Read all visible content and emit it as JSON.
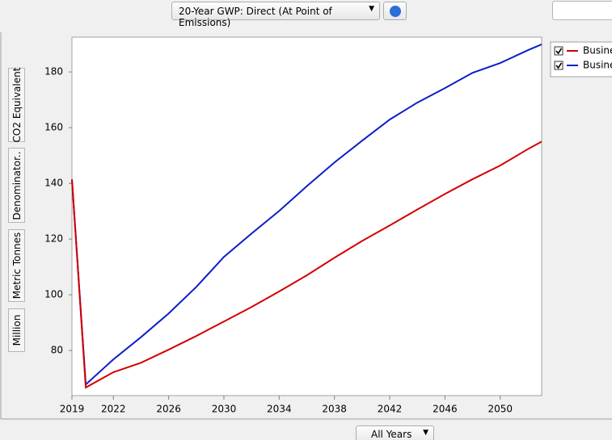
{
  "toolbar": {
    "gwp_select": "20-Year GWP: Direct (At Point of Emissions)"
  },
  "side_tabs": [
    "CO2 Equivalent",
    "Denominator..",
    "Metric Tonnes",
    "Million"
  ],
  "footer": {
    "years_select": "All Years"
  },
  "chart_data": {
    "type": "line",
    "x": [
      2019,
      2020,
      2022,
      2024,
      2026,
      2028,
      2030,
      2032,
      2034,
      2036,
      2038,
      2040,
      2042,
      2044,
      2046,
      2048,
      2050,
      2052,
      2053
    ],
    "series": [
      {
        "name": "Busine",
        "color": "#d40000",
        "values": [
          141.4,
          66.7,
          72.2,
          75.6,
          80.3,
          85.2,
          90.4,
          95.6,
          101.2,
          107.0,
          113.3,
          119.3,
          124.9,
          130.6,
          136.2,
          141.5,
          146.4,
          152.3,
          155.0
        ]
      },
      {
        "name": "Busine",
        "color": "#0a1fc8",
        "values": [
          141.4,
          67.8,
          76.8,
          84.8,
          93.3,
          102.8,
          113.6,
          122.0,
          130.1,
          139.0,
          147.5,
          155.3,
          162.9,
          169.0,
          174.2,
          179.7,
          183.2,
          187.8,
          189.9
        ]
      }
    ],
    "xlim": [
      2019,
      2053
    ],
    "xticks": [
      2019,
      2022,
      2026,
      2030,
      2034,
      2038,
      2042,
      2046,
      2050
    ],
    "ylim": [
      63.8,
      192.5
    ],
    "yticks": [
      80,
      100,
      120,
      140,
      160,
      180
    ],
    "legend": "upper right"
  }
}
